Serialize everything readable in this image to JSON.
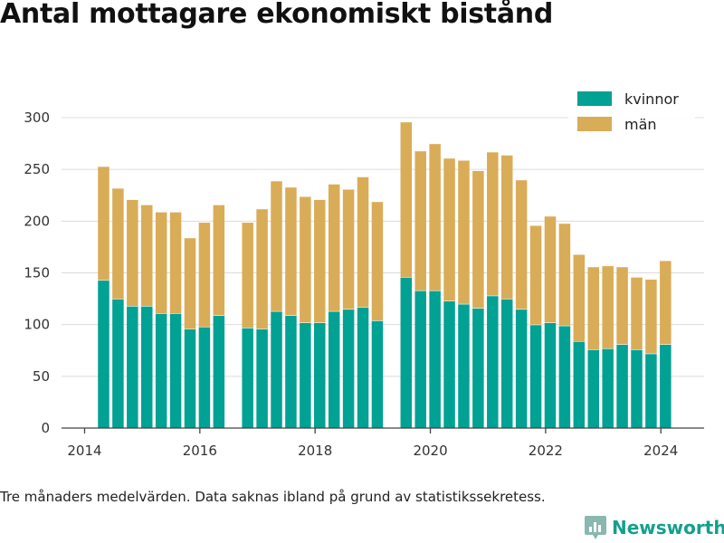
{
  "colors": {
    "kvinnor": "#01a193",
    "man": "#d9ac58",
    "grid": "#dcdcdc",
    "axis": "#444444",
    "brand": "#14a08c"
  },
  "brand": {
    "name": "Newsworthy",
    "icon": "bar-chart-badge-icon"
  },
  "footnote": "Tre månaders medelvärden. Data saknas ibland på grund av statistikssekretess.",
  "chart_data": {
    "type": "bar",
    "stacked": true,
    "title": "Antal mottagare ekonomiskt bistånd",
    "xlabel": "",
    "ylabel": "",
    "ylim": [
      0,
      320
    ],
    "yticks": [
      0,
      50,
      100,
      150,
      200,
      250,
      300
    ],
    "xlim": [
      2013.6,
      2024.75
    ],
    "xticks": [
      2014,
      2016,
      2018,
      2020,
      2022,
      2024
    ],
    "xtick_labels": [
      "2014",
      "2016",
      "2018",
      "2020",
      "2022",
      "2024"
    ],
    "grid": true,
    "legend": "top-right",
    "x": [
      2014.33,
      2014.58,
      2014.83,
      2015.08,
      2015.33,
      2015.58,
      2015.83,
      2016.08,
      2016.33,
      2016.83,
      2017.08,
      2017.33,
      2017.58,
      2017.83,
      2018.08,
      2018.33,
      2018.58,
      2018.83,
      2019.08,
      2019.58,
      2019.83,
      2020.08,
      2020.33,
      2020.58,
      2020.83,
      2021.08,
      2021.33,
      2021.58,
      2021.83,
      2022.08,
      2022.33,
      2022.58,
      2022.83,
      2023.08,
      2023.33,
      2023.58,
      2023.83,
      2024.08
    ],
    "series": [
      {
        "name": "kvinnor",
        "values": [
          143,
          125,
          118,
          118,
          111,
          111,
          96,
          98,
          109,
          97,
          96,
          113,
          109,
          102,
          102,
          113,
          115,
          117,
          104,
          146,
          133,
          133,
          123,
          120,
          116,
          128,
          125,
          115,
          100,
          102,
          99,
          84,
          76,
          77,
          81,
          76,
          72,
          81
        ]
      },
      {
        "name": "män",
        "values": [
          110,
          107,
          103,
          98,
          98,
          98,
          88,
          101,
          107,
          102,
          116,
          126,
          124,
          122,
          119,
          123,
          116,
          126,
          115,
          150,
          135,
          142,
          138,
          139,
          133,
          139,
          139,
          125,
          96,
          103,
          99,
          84,
          80,
          80,
          75,
          70,
          72,
          81
        ]
      }
    ]
  }
}
